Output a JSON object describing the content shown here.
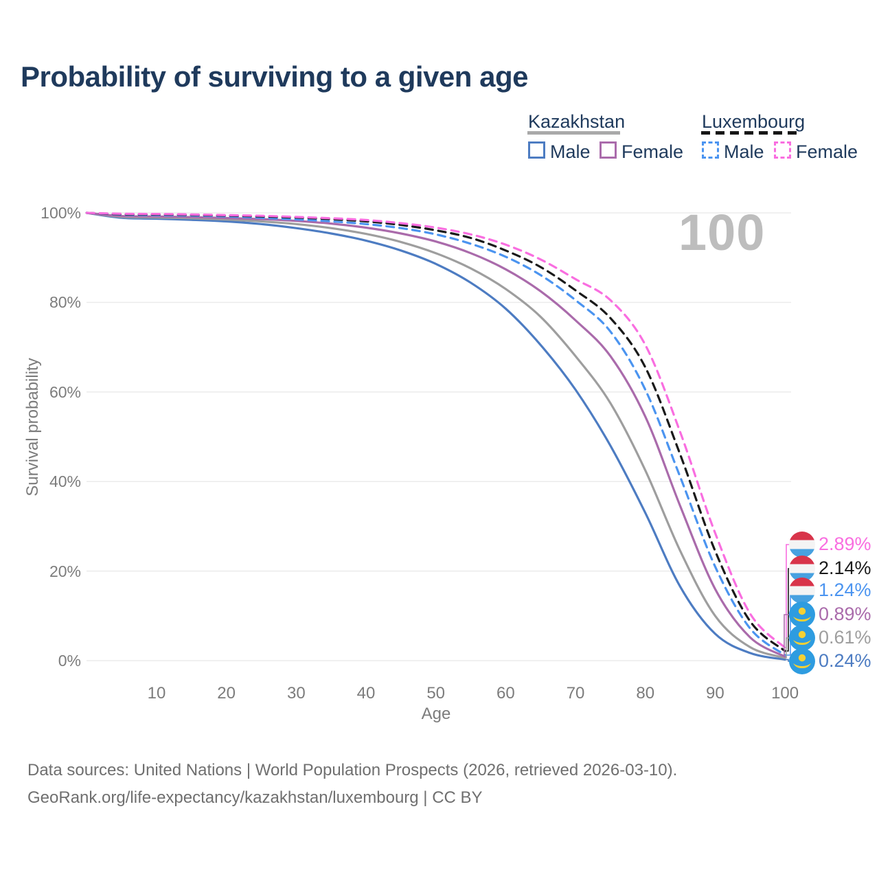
{
  "title": "Probability of surviving to a given age",
  "watermark": "100",
  "legend": {
    "groups": [
      {
        "label": "Kazakhstan",
        "line_style": "solid",
        "underline_color": "#a9a9a9",
        "items": [
          {
            "label": "Male",
            "color": "#4d7cc2"
          },
          {
            "label": "Female",
            "color": "#aa6bab"
          }
        ]
      },
      {
        "label": "Luxembourg",
        "line_style": "dashed",
        "underline_color": "#1a1a1a",
        "items": [
          {
            "label": "Male",
            "color": "#4b94f0"
          },
          {
            "label": "Female",
            "color": "#f96ee0"
          }
        ]
      }
    ]
  },
  "axes": {
    "x": {
      "label": "Age",
      "ticks": [
        10,
        20,
        30,
        40,
        50,
        60,
        70,
        80,
        90,
        100
      ]
    },
    "y": {
      "label": "Survival probability",
      "ticks": [
        {
          "label": "100%",
          "value": 100
        },
        {
          "label": "80%",
          "value": 80
        },
        {
          "label": "60%",
          "value": 60
        },
        {
          "label": "40%",
          "value": 40
        },
        {
          "label": "20%",
          "value": 20
        },
        {
          "label": "0%",
          "value": 0
        }
      ]
    }
  },
  "chart_data": {
    "type": "line",
    "title": "Probability of surviving to a given age",
    "xlabel": "Age",
    "ylabel": "Survival probability",
    "xlim": [
      0,
      101
    ],
    "ylim": [
      0,
      100
    ],
    "grid": "horizontal",
    "x_ages": [
      0,
      5,
      10,
      15,
      20,
      25,
      30,
      35,
      40,
      45,
      50,
      55,
      60,
      65,
      70,
      75,
      80,
      85,
      90,
      95,
      100
    ],
    "series": [
      {
        "name": "Luxembourg Female",
        "country": "Luxembourg",
        "sex": "Female",
        "dash": true,
        "color": "#f96ee0",
        "end_label": "2.89%",
        "flag": "luxembourg",
        "values": [
          100,
          99.8,
          99.75,
          99.65,
          99.5,
          99.35,
          99.1,
          98.8,
          98.4,
          97.7,
          96.7,
          95.2,
          92.9,
          89.6,
          85.2,
          80.5,
          70.5,
          51.0,
          28.5,
          10.5,
          2.89
        ]
      },
      {
        "name": "Luxembourg Both sexes",
        "country": "Luxembourg",
        "sex": "Both sexes",
        "dash": true,
        "color": "#1a1a1a",
        "end_label": "2.14%",
        "flag": "luxembourg",
        "values": [
          100,
          99.7,
          99.65,
          99.55,
          99.4,
          99.2,
          98.95,
          98.6,
          98.1,
          97.3,
          96.1,
          94.4,
          91.6,
          87.9,
          82.7,
          76.5,
          65.5,
          46.0,
          24.5,
          8.8,
          2.14
        ]
      },
      {
        "name": "Luxembourg Male",
        "country": "Luxembourg",
        "sex": "Male",
        "dash": true,
        "color": "#4b94f0",
        "end_label": "1.24%",
        "flag": "luxembourg",
        "values": [
          100,
          99.6,
          99.5,
          99.4,
          99.2,
          98.9,
          98.55,
          98.1,
          97.5,
          96.6,
          95.2,
          93.1,
          90.2,
          86.1,
          80.5,
          73.5,
          60.5,
          41.0,
          21.0,
          7.2,
          1.24
        ]
      },
      {
        "name": "Kazakhstan Female",
        "country": "Kazakhstan",
        "sex": "Female",
        "dash": false,
        "color": "#aa6bab",
        "end_label": "0.89%",
        "flag": "kazakhstan",
        "values": [
          100,
          99.3,
          99.2,
          99.05,
          98.85,
          98.6,
          98.2,
          97.6,
          96.7,
          95.4,
          93.6,
          91.0,
          87.4,
          82.5,
          76.0,
          68.0,
          54.5,
          34.5,
          16.0,
          5.2,
          0.89
        ]
      },
      {
        "name": "Kazakhstan Both sexes",
        "country": "Kazakhstan",
        "sex": "Both sexes",
        "dash": false,
        "color": "#9e9e9e",
        "end_label": "0.61%",
        "flag": "kazakhstan",
        "values": [
          100,
          99.1,
          98.95,
          98.8,
          98.5,
          98.1,
          97.5,
          96.6,
          95.3,
          93.5,
          91.0,
          87.6,
          83.0,
          76.8,
          68.0,
          57.5,
          42.5,
          24.5,
          10.0,
          3.0,
          0.61
        ]
      },
      {
        "name": "Kazakhstan Male",
        "country": "Kazakhstan",
        "sex": "Male",
        "dash": false,
        "color": "#4d7cc2",
        "end_label": "0.24%",
        "flag": "kazakhstan",
        "values": [
          100,
          98.9,
          98.7,
          98.45,
          98.1,
          97.5,
          96.6,
          95.4,
          93.8,
          91.6,
          88.6,
          84.4,
          78.6,
          70.5,
          60.5,
          48.0,
          33.0,
          16.5,
          6.0,
          1.7,
          0.24
        ]
      }
    ],
    "flag_colors": {
      "luxembourg": [
        "#d8344a",
        "#f4f4f4",
        "#47a1e0"
      ],
      "kazakhstan": {
        "background": "#2e9ce0",
        "emblem": "#f6d033"
      }
    }
  },
  "footer": {
    "line1": "Data sources: United Nations | World Population Prospects (2026, retrieved 2026-03-10).",
    "line2": "GeoRank.org/life-expectancy/kazakhstan/luxembourg | CC BY"
  }
}
